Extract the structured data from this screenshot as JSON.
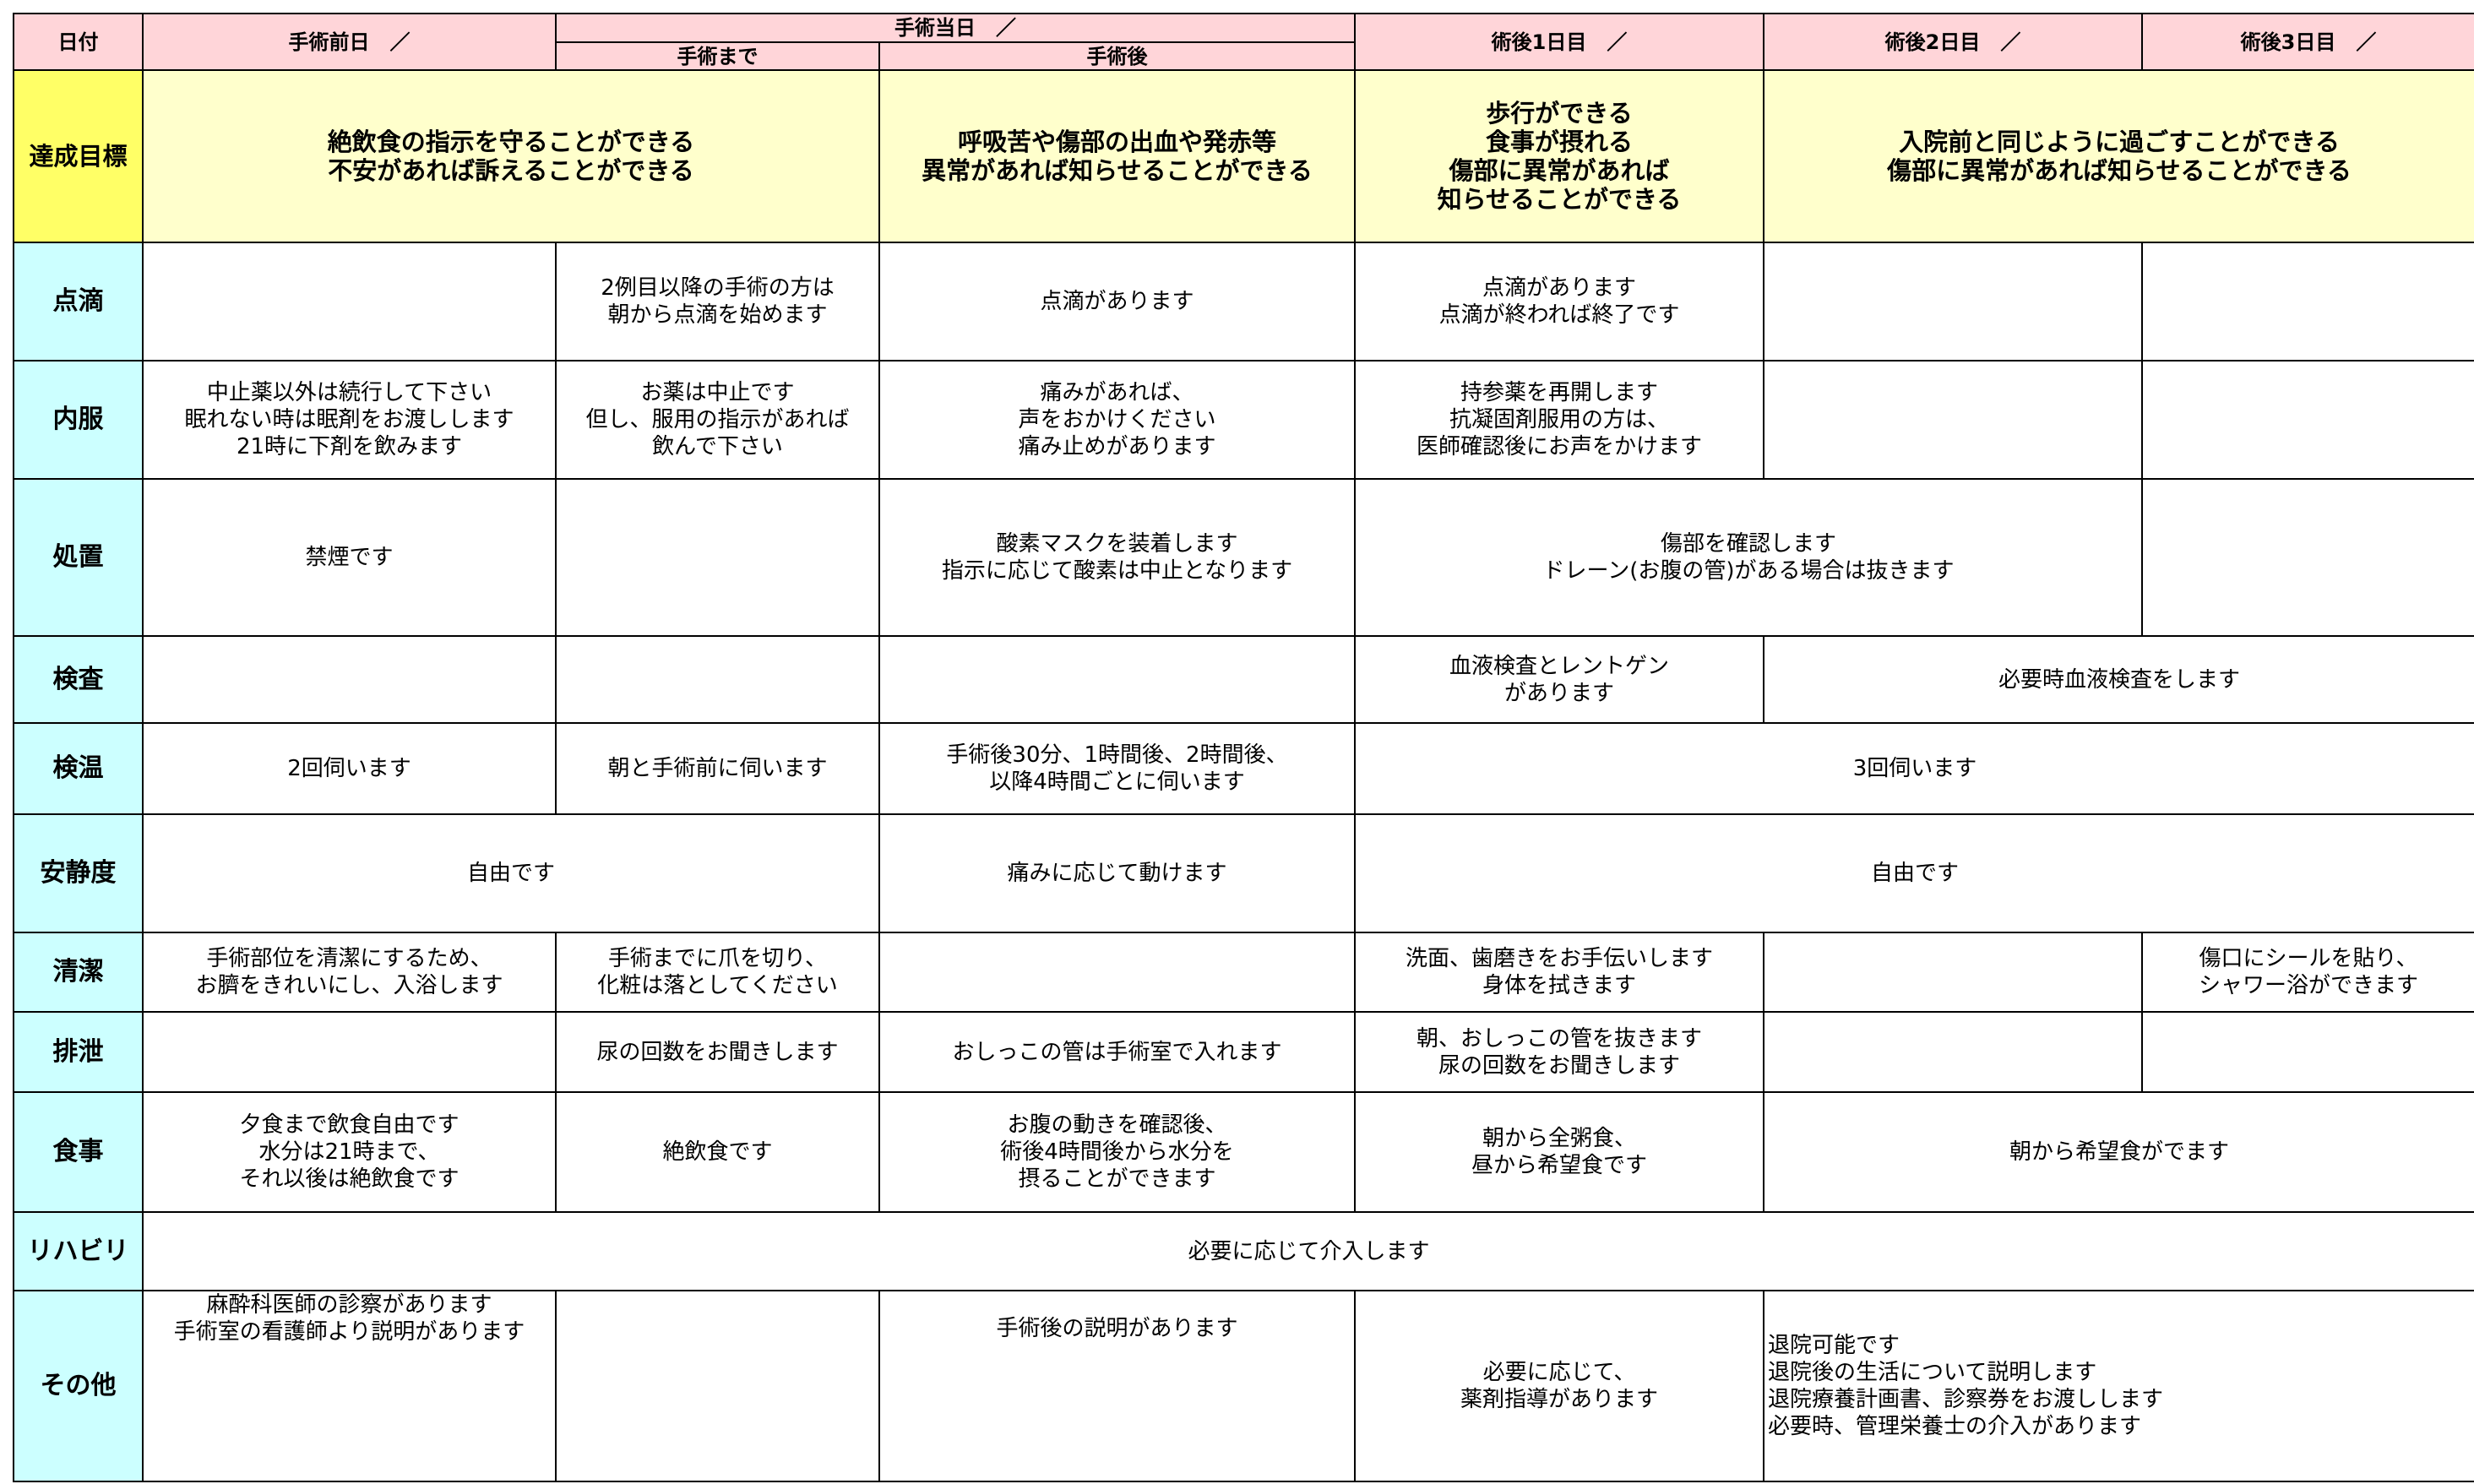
{
  "header": {
    "date": "日付",
    "day_before": "手術前日　／",
    "surgery_day": "手術当日　／",
    "before_surgery": "手術まで",
    "after_surgery": "手術後",
    "post_day1": "術後1日目　／",
    "post_day2": "術後2日目　／",
    "post_day3": "術後3日目　／"
  },
  "rows": [
    {
      "label": "達成目標",
      "cells": [
        "絶飲食の指示を守ることができる\n不安があれば訴えることができる",
        "呼吸苦や傷部の出血や発赤等\n異常があれば知らせることができる",
        "歩行ができる\n食事が摂れる\n傷部に異常があれば\n知らせることができる",
        "入院前と同じように過ごすことができる\n傷部に異常があれば知らせることができる"
      ]
    },
    {
      "label": "点滴",
      "cells": [
        "2例目以降の手術の方は\n朝から点滴を始めます",
        "点滴があります",
        "点滴があります\n点滴が終われば終了です"
      ]
    },
    {
      "label": "内服",
      "cells": [
        "中止薬以外は続行して下さい\n眠れない時は眠剤をお渡しします\n21時に下剤を飲みます",
        "お薬は中止です\n但し、服用の指示があれば\n飲んで下さい",
        "痛みがあれば、\n声をおかけください\n痛み止めがあります",
        "持参薬を再開します\n抗凝固剤服用の方は、\n医師確認後にお声をかけます"
      ]
    },
    {
      "label": "処置",
      "cells": [
        "禁煙です",
        "酸素マスクを装着します\n指示に応じて酸素は中止となります",
        "傷部を確認します\nドレーン(お腹の管)がある場合は抜きます"
      ]
    },
    {
      "label": "検査",
      "cells": [
        "血液検査とレントゲン\nがあります",
        "必要時血液検査をします"
      ]
    },
    {
      "label": "検温",
      "cells": [
        "2回伺います",
        "朝と手術前に伺います",
        "手術後30分、1時間後、2時間後、\n以降4時間ごとに伺います",
        "3回伺います"
      ]
    },
    {
      "label": "安静度",
      "cells": [
        "自由です",
        "痛みに応じて動けます",
        "自由です"
      ]
    },
    {
      "label": "清潔",
      "cells": [
        "手術部位を清潔にするため、\nお臍をきれいにし、入浴します",
        "手術までに爪を切り、\n化粧は落としてください",
        "洗面、歯磨きをお手伝いします\n身体を拭きます",
        "傷口にシールを貼り、\nシャワー浴ができます"
      ]
    },
    {
      "label": "排泄",
      "cells": [
        "尿の回数をお聞きします",
        "おしっこの管は手術室で入れます",
        "朝、おしっこの管を抜きます\n尿の回数をお聞きします"
      ]
    },
    {
      "label": "食事",
      "cells": [
        "夕食まで飲食自由です\n水分は21時まで、\nそれ以後は絶飲食です",
        "絶飲食です",
        "お腹の動きを確認後、\n術後4時間後から水分を\n摂ることができます",
        "朝から全粥食、\n昼から希望食です",
        "朝から希望食がでます"
      ]
    },
    {
      "label": "リハビリ",
      "cells": [
        "必要に応じて介入します"
      ]
    },
    {
      "label": "その他",
      "cells": [
        "麻酔科医師の診察があります\n手術室の看護師より説明があります",
        "手術後の説明があります",
        "必要に応じて、\n薬剤指導があります",
        "退院可能です\n退院後の生活について説明します\n退院療養計画書、診察券をお渡しします\n必要時、管理栄養士の介入があります"
      ]
    }
  ]
}
